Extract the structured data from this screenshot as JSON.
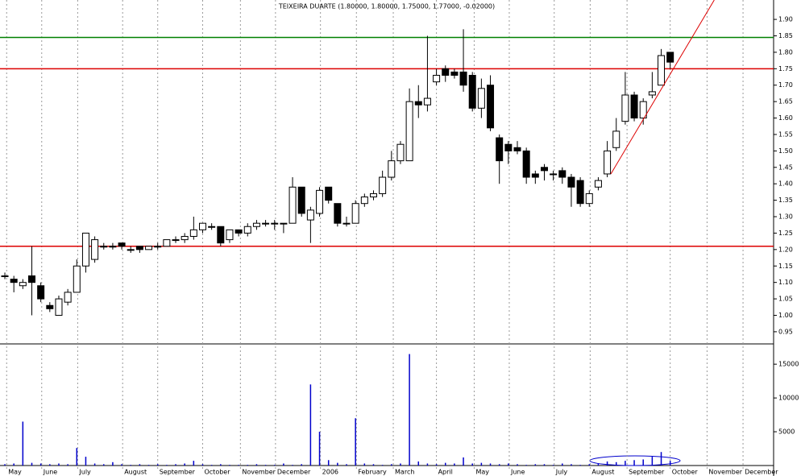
{
  "chart_data": [
    {
      "type": "candlestick",
      "title": "TEIXEIRA DUARTE (1.80000, 1.80000, 1.75000, 1.77000, -0.02000)",
      "open": [
        1.12,
        1.11,
        1.09,
        1.12,
        1.09,
        1.03,
        1.0,
        1.04,
        1.07,
        1.15,
        1.17,
        1.21,
        1.21,
        1.22,
        1.2,
        1.21,
        1.2,
        1.21,
        1.21,
        1.23,
        1.23,
        1.24,
        1.26,
        1.27,
        1.27,
        1.23,
        1.26,
        1.25,
        1.27,
        1.28,
        1.28,
        1.28,
        1.28,
        1.39,
        1.29,
        1.31,
        1.39,
        1.34,
        1.28,
        1.28,
        1.34,
        1.36,
        1.37,
        1.42,
        1.47,
        1.47,
        1.65,
        1.64,
        1.71,
        1.75,
        1.74,
        1.74,
        1.73,
        1.63,
        1.7,
        1.54,
        1.52,
        1.51,
        1.5,
        1.43,
        1.45,
        1.43,
        1.44,
        1.42,
        1.41,
        1.34,
        1.39,
        1.43,
        1.51,
        1.59,
        1.67,
        1.6,
        1.67,
        1.7,
        1.8
      ],
      "high": [
        1.13,
        1.12,
        1.11,
        1.21,
        1.1,
        1.04,
        1.06,
        1.08,
        1.17,
        1.25,
        1.24,
        1.22,
        1.22,
        1.22,
        1.21,
        1.21,
        1.21,
        1.22,
        1.23,
        1.24,
        1.25,
        1.3,
        1.28,
        1.28,
        1.27,
        1.26,
        1.26,
        1.28,
        1.29,
        1.29,
        1.29,
        1.28,
        1.42,
        1.39,
        1.33,
        1.39,
        1.39,
        1.34,
        1.3,
        1.35,
        1.37,
        1.38,
        1.44,
        1.5,
        1.53,
        1.69,
        1.7,
        1.85,
        1.75,
        1.76,
        1.75,
        1.87,
        1.74,
        1.72,
        1.73,
        1.55,
        1.53,
        1.53,
        1.51,
        1.44,
        1.46,
        1.44,
        1.45,
        1.43,
        1.42,
        1.38,
        1.42,
        1.53,
        1.6,
        1.74,
        1.68,
        1.66,
        1.74,
        1.81,
        1.8
      ],
      "low": [
        1.11,
        1.07,
        1.08,
        1.0,
        1.04,
        1.01,
        1.0,
        1.03,
        1.07,
        1.13,
        1.16,
        1.2,
        1.2,
        1.2,
        1.19,
        1.19,
        1.2,
        1.2,
        1.21,
        1.22,
        1.22,
        1.23,
        1.25,
        1.26,
        1.21,
        1.22,
        1.24,
        1.24,
        1.26,
        1.27,
        1.26,
        1.25,
        1.28,
        1.3,
        1.22,
        1.3,
        1.34,
        1.27,
        1.27,
        1.28,
        1.33,
        1.35,
        1.36,
        1.41,
        1.46,
        1.47,
        1.6,
        1.62,
        1.7,
        1.71,
        1.72,
        1.68,
        1.62,
        1.6,
        1.56,
        1.4,
        1.46,
        1.49,
        1.4,
        1.4,
        1.41,
        1.41,
        1.4,
        1.33,
        1.33,
        1.33,
        1.38,
        1.42,
        1.5,
        1.58,
        1.59,
        1.58,
        1.66,
        1.7,
        1.75
      ],
      "close": [
        1.12,
        1.1,
        1.1,
        1.1,
        1.05,
        1.02,
        1.05,
        1.07,
        1.15,
        1.25,
        1.23,
        1.21,
        1.21,
        1.21,
        1.2,
        1.2,
        1.21,
        1.21,
        1.23,
        1.23,
        1.24,
        1.26,
        1.28,
        1.27,
        1.22,
        1.26,
        1.25,
        1.27,
        1.28,
        1.28,
        1.28,
        1.28,
        1.39,
        1.31,
        1.32,
        1.38,
        1.35,
        1.28,
        1.28,
        1.34,
        1.36,
        1.37,
        1.42,
        1.47,
        1.52,
        1.65,
        1.64,
        1.66,
        1.73,
        1.73,
        1.73,
        1.7,
        1.63,
        1.69,
        1.57,
        1.47,
        1.5,
        1.5,
        1.42,
        1.42,
        1.44,
        1.43,
        1.42,
        1.39,
        1.34,
        1.37,
        1.41,
        1.5,
        1.56,
        1.67,
        1.6,
        1.65,
        1.68,
        1.79,
        1.77
      ],
      "up_color": "#ffffff",
      "down_color": "#000000",
      "xlim": [
        -0.54,
        85.5
      ],
      "xticks": [
        {
          "value": 0.2,
          "label": "May"
        },
        {
          "value": 4.1,
          "label": "June"
        },
        {
          "value": 8.1,
          "label": "July"
        },
        {
          "value": 13.1,
          "label": "August"
        },
        {
          "value": 17.0,
          "label": "September"
        },
        {
          "value": 22.0,
          "label": "October"
        },
        {
          "value": 26.2,
          "label": "November"
        },
        {
          "value": 30.1,
          "label": "December"
        },
        {
          "value": 35.1,
          "label": "2006"
        },
        {
          "value": 39.1,
          "label": "February"
        },
        {
          "value": 43.2,
          "label": "March"
        },
        {
          "value": 48.0,
          "label": "April"
        },
        {
          "value": 52.2,
          "label": "May"
        },
        {
          "value": 56.1,
          "label": "June"
        },
        {
          "value": 61.1,
          "label": "July"
        },
        {
          "value": 65.1,
          "label": "August"
        },
        {
          "value": 69.2,
          "label": "September"
        },
        {
          "value": 74.0,
          "label": "October"
        },
        {
          "value": 78.1,
          "label": "November"
        },
        {
          "value": 82.1,
          "label": "December"
        }
      ],
      "ylim": [
        0.913,
        1.959
      ],
      "yticks": [
        {
          "value": 0.95,
          "label": "0.95"
        },
        {
          "value": 1.0,
          "label": "1.00"
        },
        {
          "value": 1.05,
          "label": "1.05"
        },
        {
          "value": 1.1,
          "label": "1.10"
        },
        {
          "value": 1.15,
          "label": "1.15"
        },
        {
          "value": 1.2,
          "label": "1.20"
        },
        {
          "value": 1.25,
          "label": "1.25"
        },
        {
          "value": 1.3,
          "label": "1.30"
        },
        {
          "value": 1.35,
          "label": "1.35"
        },
        {
          "value": 1.4,
          "label": "1.40"
        },
        {
          "value": 1.45,
          "label": "1.45"
        },
        {
          "value": 1.5,
          "label": "1.50"
        },
        {
          "value": 1.55,
          "label": "1.55"
        },
        {
          "value": 1.6,
          "label": "1.60"
        },
        {
          "value": 1.65,
          "label": "1.65"
        },
        {
          "value": 1.7,
          "label": "1.70"
        },
        {
          "value": 1.75,
          "label": "1.75"
        },
        {
          "value": 1.8,
          "label": "1.80"
        },
        {
          "value": 1.85,
          "label": "1.85"
        },
        {
          "value": 1.9,
          "label": "1.90"
        }
      ],
      "hlines": [
        {
          "value": 1.845,
          "color": "#008000"
        },
        {
          "value": 1.75,
          "color": "#dd0000"
        },
        {
          "value": 1.21,
          "color": "#dd0000"
        }
      ],
      "trendline": {
        "x": [
          67.4,
          78.9
        ],
        "y": [
          1.43,
          1.959
        ],
        "color": "#dd0000"
      },
      "grid": true
    },
    {
      "type": "volume",
      "values": [
        200,
        300,
        6500,
        400,
        300,
        200,
        300,
        200,
        2600,
        1300,
        300,
        200,
        500,
        200,
        100,
        200,
        100,
        200,
        100,
        200,
        300,
        700,
        200,
        100,
        200,
        100,
        100,
        100,
        200,
        100,
        100,
        300,
        100,
        200,
        12000,
        5000,
        800,
        400,
        200,
        7000,
        300,
        200,
        100,
        200,
        300,
        16500,
        600,
        300,
        200,
        400,
        300,
        1200,
        300,
        400,
        300,
        200,
        300,
        200,
        100,
        200,
        200,
        100,
        300,
        200,
        100,
        200,
        300,
        600,
        500,
        700,
        800,
        900,
        1300,
        2000,
        700
      ],
      "color": "#0000cc",
      "ylim": [
        0,
        18000
      ],
      "yticks": [
        5000,
        10000,
        15000
      ]
    }
  ]
}
